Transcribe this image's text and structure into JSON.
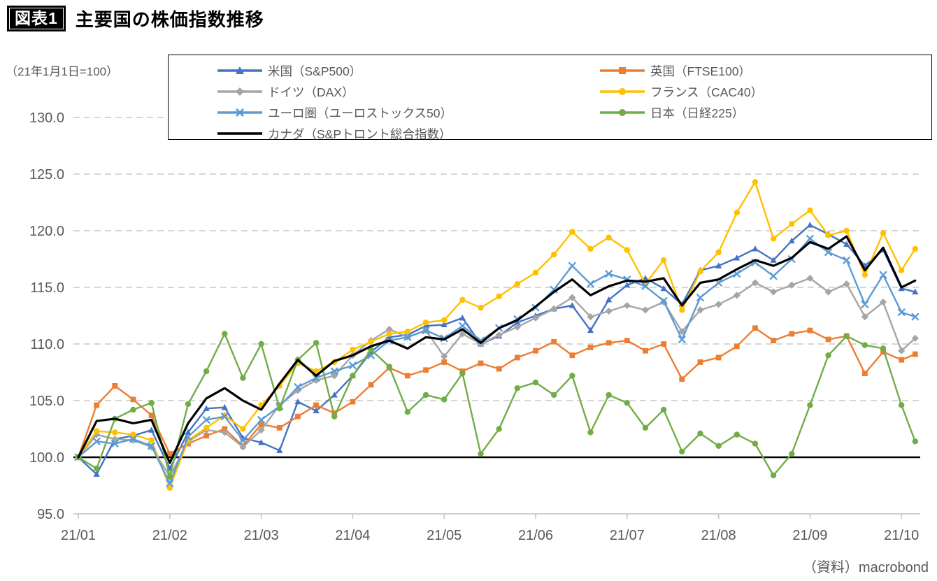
{
  "header": {
    "badge": "図表1",
    "title": "主要国の株価指数推移"
  },
  "axis_note": "（21年1月1日=100）",
  "source": "（資料）macrobond",
  "chart_data": {
    "type": "line",
    "title": "主要国の株価指数推移",
    "x_unit": "months since 2021-01-01",
    "x_ticks": [
      "21/01",
      "21/02",
      "21/03",
      "21/04",
      "21/05",
      "21/06",
      "21/07",
      "21/08",
      "21/09",
      "21/10"
    ],
    "y_tick_labels": [
      "130.0",
      "125.0",
      "120.0",
      "115.0",
      "110.0",
      "105.0",
      "100.0",
      "95.0"
    ],
    "ylim": [
      95,
      130
    ],
    "y_tick_step": 5,
    "baseline_value": 100,
    "grid": "dashed horizontal majors",
    "legend_position": "top-boxed-two-columns",
    "legend_columns": [
      [
        "us",
        "germany",
        "euro",
        "canada"
      ],
      [
        "uk",
        "france",
        "japan"
      ]
    ],
    "colors": {
      "us": "#4472C4",
      "uk": "#ED7D31",
      "germany": "#A5A5A5",
      "france": "#FFC000",
      "euro": "#5B9BD5",
      "japan": "#70AD47",
      "canada": "#000000",
      "axis_text": "#595959",
      "gridline": "#C9C9C9",
      "axis_line": "#BFBFBF"
    },
    "x": [
      0,
      0.2,
      0.4,
      0.6,
      0.8,
      1,
      1.2,
      1.4,
      1.6,
      1.8,
      2,
      2.2,
      2.4,
      2.6,
      2.8,
      3,
      3.2,
      3.4,
      3.6,
      3.8,
      4,
      4.2,
      4.4,
      4.6,
      4.8,
      5,
      5.2,
      5.4,
      5.6,
      5.8,
      6,
      6.2,
      6.4,
      6.6,
      6.8,
      7,
      7.2,
      7.4,
      7.6,
      7.8,
      8,
      8.2,
      8.4,
      8.6,
      8.8,
      9,
      9.15
    ],
    "series": [
      {
        "key": "us",
        "label": "米国（S&P500）",
        "color": "#4472C4",
        "marker": "triangle",
        "values": [
          100,
          98.5,
          101.6,
          101.9,
          102.4,
          99,
          102.2,
          104.3,
          104.4,
          101.7,
          101.3,
          100.6,
          104.9,
          104.1,
          105.5,
          107.2,
          109.3,
          110.6,
          110.8,
          111.6,
          111.7,
          112.3,
          110,
          110.7,
          111.9,
          112.5,
          113.1,
          113.4,
          111.2,
          113.9,
          115.2,
          115.8,
          114.9,
          113.5,
          116.5,
          116.9,
          117.6,
          118.4,
          117.4,
          119.1,
          120.5,
          119.7,
          118.8,
          116.9,
          118.3,
          114.9,
          114.6
        ]
      },
      {
        "key": "uk",
        "label": "英国（FTSE100）",
        "color": "#ED7D31",
        "marker": "square",
        "values": [
          100,
          104.6,
          106.3,
          105.1,
          103.7,
          100.3,
          101.2,
          101.9,
          102.5,
          101,
          102.9,
          102.6,
          103.6,
          104.6,
          103.9,
          104.9,
          106.4,
          107.9,
          107.2,
          107.7,
          108.4,
          107.6,
          108.3,
          107.8,
          108.8,
          109.4,
          110.2,
          109,
          109.7,
          110.1,
          110.3,
          109.4,
          110,
          106.9,
          108.4,
          108.8,
          109.8,
          111.4,
          110.3,
          110.9,
          111.2,
          110.4,
          110.7,
          107.4,
          109.3,
          108.6,
          109.1
        ]
      },
      {
        "key": "germany",
        "label": "ドイツ（DAX）",
        "color": "#A5A5A5",
        "marker": "diamond",
        "values": [
          100,
          102,
          101.6,
          101.5,
          100.9,
          98.3,
          101.4,
          102.4,
          102.2,
          100.9,
          102.4,
          104.6,
          105.9,
          106.8,
          107.2,
          109,
          110.3,
          111.3,
          110.6,
          111.2,
          108.9,
          110.9,
          110,
          110.8,
          111.5,
          112.3,
          113.1,
          114.1,
          112.4,
          112.9,
          113.4,
          113,
          113.7,
          111.1,
          113,
          113.5,
          114.3,
          115.4,
          114.6,
          115.2,
          115.8,
          114.6,
          115.3,
          112.4,
          113.7,
          109.4,
          110.5
        ]
      },
      {
        "key": "france",
        "label": "フランス（CAC40）",
        "color": "#FFC000",
        "marker": "circle",
        "values": [
          100,
          102.3,
          102.2,
          102,
          101.5,
          97.3,
          101.5,
          102.6,
          103.7,
          102.5,
          104.6,
          106.3,
          108.3,
          107.6,
          108.4,
          109.5,
          110.2,
          110.9,
          111.1,
          111.9,
          112.1,
          113.9,
          113.2,
          114.2,
          115.3,
          116.3,
          117.9,
          119.9,
          118.4,
          119.4,
          118.3,
          115.3,
          117.4,
          113,
          116.4,
          118.1,
          121.6,
          124.3,
          119.3,
          120.6,
          121.8,
          119.6,
          120,
          116.1,
          119.8,
          116.5,
          118.4
        ]
      },
      {
        "key": "euro",
        "label": "ユーロ圏（ユーロストックス50）",
        "color": "#5B9BD5",
        "marker": "x",
        "values": [
          100,
          101.4,
          101.2,
          101.6,
          101,
          97.7,
          101.8,
          103.3,
          103.6,
          101.5,
          103.3,
          104.5,
          106.2,
          107,
          107.6,
          108.1,
          109,
          110.3,
          110.6,
          111.2,
          110.5,
          111.6,
          110.3,
          111.4,
          112.2,
          113.2,
          114.8,
          116.9,
          115.3,
          116.2,
          115.7,
          115.1,
          113.8,
          110.4,
          114.1,
          115.4,
          116.2,
          117.2,
          116,
          117.5,
          119.3,
          118.1,
          117.4,
          113.5,
          116.1,
          112.8,
          112.4
        ]
      },
      {
        "key": "japan",
        "label": "日本（日経225）",
        "color": "#70AD47",
        "marker": "circle",
        "values": [
          100,
          99,
          103.4,
          104.2,
          104.8,
          98.3,
          104.7,
          107.6,
          110.9,
          107,
          110,
          104.3,
          108.6,
          110.1,
          103.6,
          107.2,
          109.5,
          108,
          104,
          105.5,
          105.1,
          107.4,
          100.3,
          102.5,
          106.1,
          106.6,
          105.5,
          107.2,
          102.2,
          105.5,
          104.8,
          102.6,
          104.2,
          100.5,
          102.1,
          101,
          102,
          101.2,
          98.4,
          100.3,
          104.6,
          109,
          110.7,
          109.9,
          109.6,
          104.6,
          101.4
        ]
      },
      {
        "key": "canada",
        "label": "カナダ（S&Pトロント総合指数）",
        "color": "#000000",
        "marker": "none",
        "values": [
          100,
          103.2,
          103.4,
          103,
          103.3,
          99.5,
          103,
          105.2,
          106.1,
          105,
          104.2,
          106.5,
          108.6,
          107.2,
          108.5,
          109,
          109.8,
          110.3,
          109.6,
          110.6,
          110.4,
          111.3,
          110.1,
          111.4,
          112.1,
          113.3,
          114.6,
          115.7,
          114.3,
          115.1,
          115.6,
          115.5,
          115.8,
          113.4,
          115.4,
          115.7,
          116.6,
          117.4,
          116.9,
          117.6,
          119,
          118.4,
          119.5,
          116.5,
          118.5,
          115,
          115.6
        ]
      }
    ]
  }
}
